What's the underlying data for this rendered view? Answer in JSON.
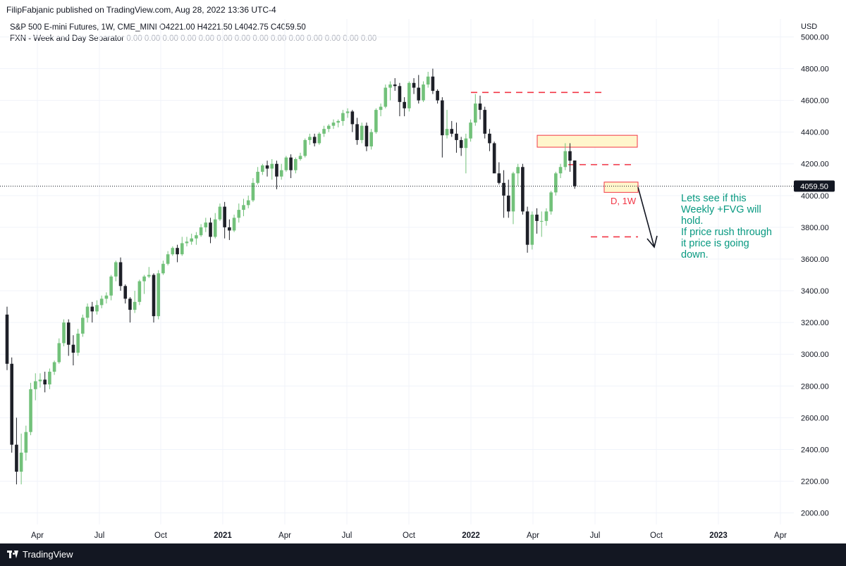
{
  "header": {
    "published_by": "FilipFabjanic published on TradingView.com, Aug 28, 2022 13:36 UTC-4"
  },
  "legend": {
    "symbol_line": "S&P 500 E-mini Futures, 1W, CME_MINI  O4221.00  H4221.50  L4042.75  C4059.50",
    "indicator_name": "FXN - Week and Day Separator",
    "indicator_values": "0.00  0.00  0.00  0.00  0.00  0.00  0.00  0.00  0.00  0.00  0.00  0.00  0.00  0.00"
  },
  "price_axis": {
    "currency": "USD",
    "ticks": [
      "5000.00",
      "4800.00",
      "4600.00",
      "4400.00",
      "4200.00",
      "4000.00",
      "3800.00",
      "3600.00",
      "3400.00",
      "3200.00",
      "3000.00",
      "2800.00",
      "2600.00",
      "2400.00",
      "2200.00",
      "2000.00"
    ],
    "last_price": "4059.50"
  },
  "time_axis": {
    "labels": [
      "Apr",
      "Jul",
      "Oct",
      "2021",
      "Apr",
      "Jul",
      "Oct",
      "2022",
      "Apr",
      "Jul",
      "Oct",
      "2023",
      "Apr"
    ]
  },
  "box_label": "D, 1W",
  "annotation": "Lets see if this Weekly +FVG will hold.\nIf price rush through it price is going down.",
  "footer": {
    "brand": "TradingView"
  },
  "colors": {
    "up": "#72c17a",
    "down": "#1e2028",
    "zone_fill": "#fff6cc",
    "zone_border": "#f23645",
    "level_line": "#f23645",
    "annotation_text": "#089981"
  },
  "chart_data": {
    "type": "candlestick",
    "title": "S&P 500 E-mini Futures, 1W, CME_MINI",
    "y_unit": "USD",
    "ylim": [
      1960,
      5100
    ],
    "ohlc": [
      [
        3250,
        3300,
        2900,
        2940
      ],
      [
        2940,
        2980,
        2380,
        2430
      ],
      [
        2430,
        2600,
        2180,
        2260
      ],
      [
        2260,
        2500,
        2180,
        2380
      ],
      [
        2380,
        2550,
        2330,
        2510
      ],
      [
        2510,
        2820,
        2490,
        2780
      ],
      [
        2780,
        2880,
        2710,
        2830
      ],
      [
        2830,
        2880,
        2790,
        2840
      ],
      [
        2840,
        2890,
        2760,
        2810
      ],
      [
        2810,
        2910,
        2780,
        2890
      ],
      [
        2890,
        2960,
        2870,
        2950
      ],
      [
        2950,
        3100,
        2940,
        3070
      ],
      [
        3070,
        3220,
        3050,
        3200
      ],
      [
        3200,
        3220,
        2990,
        3060
      ],
      [
        3060,
        3120,
        2930,
        3010
      ],
      [
        3010,
        3160,
        2990,
        3130
      ],
      [
        3130,
        3250,
        3110,
        3230
      ],
      [
        3230,
        3320,
        3200,
        3300
      ],
      [
        3300,
        3330,
        3200,
        3270
      ],
      [
        3270,
        3340,
        3250,
        3310
      ],
      [
        3310,
        3370,
        3290,
        3350
      ],
      [
        3350,
        3390,
        3320,
        3370
      ],
      [
        3370,
        3500,
        3340,
        3490
      ],
      [
        3490,
        3590,
        3460,
        3580
      ],
      [
        3580,
        3610,
        3400,
        3430
      ],
      [
        3430,
        3440,
        3320,
        3350
      ],
      [
        3350,
        3360,
        3200,
        3280
      ],
      [
        3280,
        3400,
        3260,
        3330
      ],
      [
        3330,
        3470,
        3310,
        3460
      ],
      [
        3460,
        3500,
        3380,
        3490
      ],
      [
        3490,
        3550,
        3480,
        3500
      ],
      [
        3500,
        3510,
        3200,
        3240
      ],
      [
        3240,
        3530,
        3220,
        3510
      ],
      [
        3510,
        3590,
        3500,
        3570
      ],
      [
        3570,
        3650,
        3560,
        3630
      ],
      [
        3630,
        3680,
        3620,
        3670
      ],
      [
        3670,
        3690,
        3580,
        3630
      ],
      [
        3630,
        3740,
        3620,
        3700
      ],
      [
        3700,
        3740,
        3680,
        3710
      ],
      [
        3710,
        3760,
        3690,
        3730
      ],
      [
        3730,
        3770,
        3690,
        3750
      ],
      [
        3750,
        3820,
        3740,
        3800
      ],
      [
        3800,
        3860,
        3770,
        3830
      ],
      [
        3830,
        3860,
        3700,
        3740
      ],
      [
        3740,
        3890,
        3730,
        3850
      ],
      [
        3850,
        3950,
        3840,
        3930
      ],
      [
        3930,
        3960,
        3730,
        3800
      ],
      [
        3800,
        3850,
        3720,
        3780
      ],
      [
        3780,
        3880,
        3770,
        3860
      ],
      [
        3860,
        3950,
        3830,
        3910
      ],
      [
        3910,
        3980,
        3870,
        3940
      ],
      [
        3940,
        4000,
        3920,
        3970
      ],
      [
        3970,
        4110,
        3960,
        4080
      ],
      [
        4080,
        4180,
        4070,
        4150
      ],
      [
        4150,
        4200,
        4130,
        4190
      ],
      [
        4190,
        4220,
        4120,
        4170
      ],
      [
        4170,
        4230,
        4100,
        4200
      ],
      [
        4200,
        4220,
        4040,
        4120
      ],
      [
        4120,
        4200,
        4100,
        4160
      ],
      [
        4160,
        4250,
        4150,
        4240
      ],
      [
        4240,
        4260,
        4110,
        4160
      ],
      [
        4160,
        4240,
        4140,
        4230
      ],
      [
        4230,
        4270,
        4220,
        4250
      ],
      [
        4250,
        4360,
        4240,
        4350
      ],
      [
        4350,
        4390,
        4320,
        4370
      ],
      [
        4370,
        4390,
        4310,
        4330
      ],
      [
        4330,
        4400,
        4320,
        4390
      ],
      [
        4390,
        4440,
        4370,
        4420
      ],
      [
        4420,
        4450,
        4400,
        4440
      ],
      [
        4440,
        4480,
        4420,
        4460
      ],
      [
        4460,
        4480,
        4430,
        4470
      ],
      [
        4470,
        4540,
        4440,
        4520
      ],
      [
        4520,
        4550,
        4490,
        4530
      ],
      [
        4530,
        4540,
        4400,
        4450
      ],
      [
        4450,
        4490,
        4320,
        4350
      ],
      [
        4350,
        4460,
        4330,
        4440
      ],
      [
        4440,
        4460,
        4280,
        4310
      ],
      [
        4310,
        4420,
        4290,
        4400
      ],
      [
        4400,
        4550,
        4390,
        4540
      ],
      [
        4540,
        4580,
        4500,
        4560
      ],
      [
        4560,
        4700,
        4550,
        4680
      ],
      [
        4680,
        4720,
        4600,
        4700
      ],
      [
        4700,
        4740,
        4660,
        4690
      ],
      [
        4690,
        4710,
        4500,
        4590
      ],
      [
        4590,
        4620,
        4500,
        4550
      ],
      [
        4550,
        4720,
        4530,
        4710
      ],
      [
        4710,
        4740,
        4640,
        4680
      ],
      [
        4680,
        4760,
        4580,
        4600
      ],
      [
        4600,
        4720,
        4590,
        4700
      ],
      [
        4700,
        4780,
        4680,
        4750
      ],
      [
        4750,
        4800,
        4640,
        4660
      ],
      [
        4660,
        4670,
        4580,
        4600
      ],
      [
        4600,
        4620,
        4240,
        4380
      ],
      [
        4380,
        4540,
        4360,
        4420
      ],
      [
        4420,
        4470,
        4370,
        4390
      ],
      [
        4390,
        4460,
        4270,
        4350
      ],
      [
        4350,
        4370,
        4250,
        4300
      ],
      [
        4300,
        4390,
        4140,
        4360
      ],
      [
        4360,
        4480,
        4340,
        4460
      ],
      [
        4460,
        4640,
        4440,
        4580
      ],
      [
        4580,
        4630,
        4480,
        4540
      ],
      [
        4540,
        4560,
        4360,
        4390
      ],
      [
        4390,
        4420,
        4280,
        4330
      ],
      [
        4330,
        4340,
        4160,
        4140
      ],
      [
        4140,
        4210,
        4070,
        4080
      ],
      [
        4080,
        4160,
        3860,
        4000
      ],
      [
        4000,
        4100,
        3860,
        3900
      ],
      [
        3900,
        4150,
        3820,
        4140
      ],
      [
        4140,
        4200,
        4060,
        4180
      ],
      [
        4180,
        4200,
        3880,
        3900
      ],
      [
        3900,
        3930,
        3640,
        3690
      ],
      [
        3690,
        3900,
        3660,
        3880
      ],
      [
        3880,
        3920,
        3760,
        3840
      ],
      [
        3840,
        3900,
        3740,
        3840
      ],
      [
        3840,
        3920,
        3810,
        3900
      ],
      [
        3900,
        4030,
        3880,
        4020
      ],
      [
        4020,
        4150,
        4000,
        4140
      ],
      [
        4140,
        4200,
        4110,
        4180
      ],
      [
        4180,
        4330,
        4160,
        4280
      ],
      [
        4280,
        4330,
        4150,
        4220
      ],
      [
        4221,
        4221.5,
        4042.75,
        4059.5
      ]
    ],
    "levels": [
      4650,
      4195,
      3740
    ],
    "zones": [
      {
        "label": "",
        "top": 4380,
        "bottom": 4305
      },
      {
        "label": "D, 1W",
        "top": 4085,
        "bottom": 4020
      }
    ],
    "last_close": 4059.5,
    "x_labels": [
      "Apr",
      "Jul",
      "Oct",
      "2021",
      "Apr",
      "Jul",
      "Oct",
      "2022",
      "Apr",
      "Jul",
      "Oct",
      "2023",
      "Apr"
    ],
    "grid": true
  }
}
